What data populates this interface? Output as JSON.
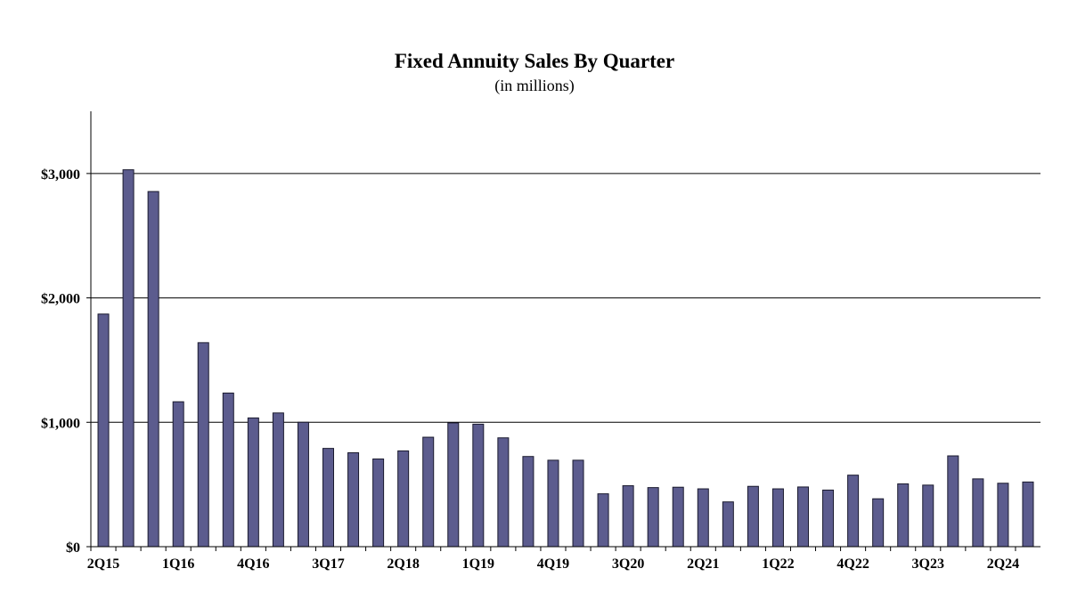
{
  "chart_data": {
    "type": "bar",
    "title": "Fixed Annuity Sales By Quarter",
    "subtitle": "(in millions)",
    "xlabel": "",
    "ylabel": "",
    "ylim": [
      0,
      3500
    ],
    "yticks": [
      0,
      1000,
      2000,
      3000
    ],
    "ytick_labels": [
      "$0",
      "$1,000",
      "$2,000",
      "$3,000"
    ],
    "grid": true,
    "bar_color": "#5c5c8e",
    "categories": [
      "2Q15",
      "3Q15",
      "4Q15",
      "1Q16",
      "2Q16",
      "3Q16",
      "4Q16",
      "1Q17",
      "2Q17",
      "3Q17",
      "4Q17",
      "1Q18",
      "2Q18",
      "3Q18",
      "4Q18",
      "1Q19",
      "2Q19",
      "3Q19",
      "4Q19",
      "1Q20",
      "2Q20",
      "3Q20",
      "4Q20",
      "1Q21",
      "2Q21",
      "3Q21",
      "4Q21",
      "1Q22",
      "2Q22",
      "3Q22",
      "4Q22",
      "1Q23",
      "2Q23",
      "3Q23",
      "4Q23",
      "1Q24",
      "2Q24",
      "3Q24"
    ],
    "tick_labels_shown": [
      "2Q15",
      "1Q16",
      "4Q16",
      "3Q17",
      "2Q18",
      "1Q19",
      "4Q19",
      "3Q20",
      "2Q21",
      "1Q22",
      "4Q22",
      "3Q23",
      "2Q24"
    ],
    "values": [
      1870,
      3030,
      2855,
      1165,
      1640,
      1235,
      1035,
      1075,
      1000,
      790,
      755,
      705,
      770,
      880,
      995,
      985,
      875,
      725,
      695,
      695,
      425,
      490,
      475,
      478,
      465,
      360,
      485,
      465,
      480,
      455,
      575,
      385,
      505,
      495,
      730,
      545,
      510,
      520
    ]
  }
}
